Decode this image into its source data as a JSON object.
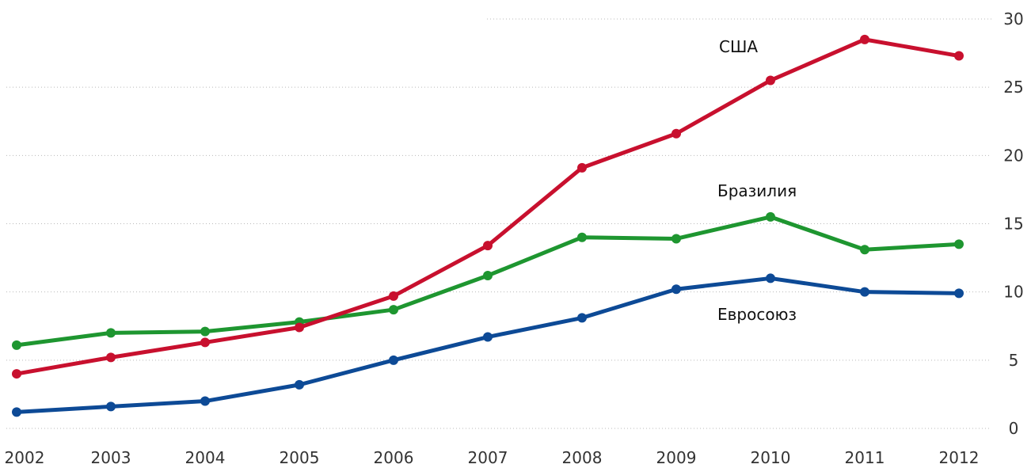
{
  "chart_data": {
    "type": "line",
    "title": "",
    "xlabel": "",
    "ylabel": "",
    "x": [
      "2002",
      "2003",
      "2004",
      "2005",
      "2006",
      "2007",
      "2008",
      "2009",
      "2010",
      "2011",
      "2012"
    ],
    "ylim": [
      0,
      30
    ],
    "yticks": [
      "0",
      "5",
      "10",
      "15",
      "20",
      "25",
      "30"
    ],
    "grid": true,
    "y_axis_position": "right",
    "series": [
      {
        "name": "США",
        "color": "#c8102e",
        "values": [
          4.0,
          5.2,
          6.3,
          7.4,
          9.7,
          13.4,
          19.1,
          21.6,
          25.5,
          28.5,
          27.3
        ]
      },
      {
        "name": "Бразилия",
        "color": "#1e9630",
        "values": [
          6.1,
          7.0,
          7.1,
          7.8,
          8.7,
          11.2,
          14.0,
          13.9,
          15.5,
          13.1,
          13.5
        ]
      },
      {
        "name": "Евросоюз",
        "color": "#0d4a96",
        "values": [
          1.2,
          1.6,
          2.0,
          3.2,
          5.0,
          6.7,
          8.1,
          10.2,
          11.0,
          10.0,
          9.9
        ]
      }
    ]
  }
}
